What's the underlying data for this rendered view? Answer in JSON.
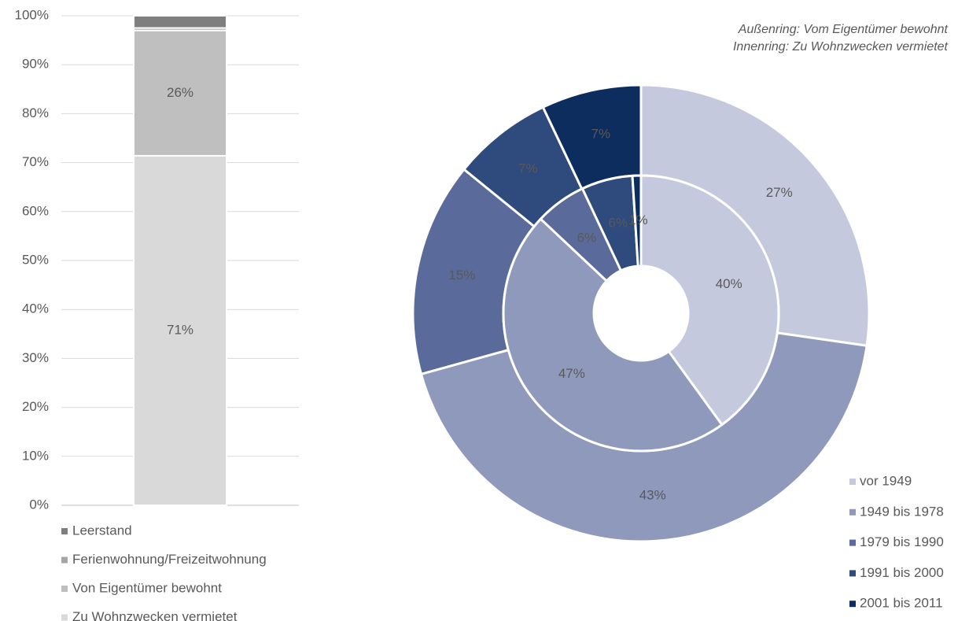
{
  "chart_data": [
    {
      "type": "stacked_bar",
      "categories": [
        null
      ],
      "ylim": [
        0,
        100
      ],
      "yticks": [
        {
          "value": 0,
          "label": "0%"
        },
        {
          "value": 10,
          "label": "10%"
        },
        {
          "value": 20,
          "label": "20%"
        },
        {
          "value": 30,
          "label": "30%"
        },
        {
          "value": 40,
          "label": "40%"
        },
        {
          "value": 50,
          "label": "50%"
        },
        {
          "value": 60,
          "label": "60%"
        },
        {
          "value": 70,
          "label": "70%"
        },
        {
          "value": 80,
          "label": "80%"
        },
        {
          "value": 90,
          "label": "90%"
        },
        {
          "value": 100,
          "label": "100%"
        }
      ],
      "grid": true,
      "series": [
        {
          "name": "Zu Wohnzwecken vermietet",
          "color": "#d9d9d9",
          "values": [
            71.4
          ],
          "value_labels": [
            "71%"
          ]
        },
        {
          "name": "Von Eigentümer bewohnt",
          "color": "#bfbfbf",
          "values": [
            25.6
          ],
          "value_labels": [
            "26%"
          ]
        },
        {
          "name": "Ferienwohnung/Freizeitwohnung",
          "color": "#a5a5a5",
          "values": [
            0.5
          ]
        },
        {
          "name": "Leerstand",
          "color": "#7f7f7f",
          "values": [
            2.5
          ]
        }
      ]
    },
    {
      "type": "donut",
      "annotations": [
        "Außenring: Vom Eigentümer bewohnt",
        "Innenring: Zu Wohnzwecken vermietet"
      ],
      "categories": [
        "vor 1949",
        "1949 bis 1978",
        "1979 bis 1990",
        "1991 bis 2000",
        "2001 bis 2011"
      ],
      "colors": [
        "#c5c9de",
        "#8e99bb",
        "#5a6a9a",
        "#2f4a7c",
        "#0c2d5e"
      ],
      "rings": [
        {
          "values": [
            27,
            43,
            15,
            7,
            7
          ],
          "value_labels": [
            "27%",
            "43%",
            "15%",
            "7%",
            "7%"
          ]
        },
        {
          "values": [
            40,
            47,
            6,
            6,
            1
          ],
          "value_labels": [
            "40%",
            "47%",
            "6%",
            "6%",
            "1%"
          ]
        }
      ]
    }
  ]
}
